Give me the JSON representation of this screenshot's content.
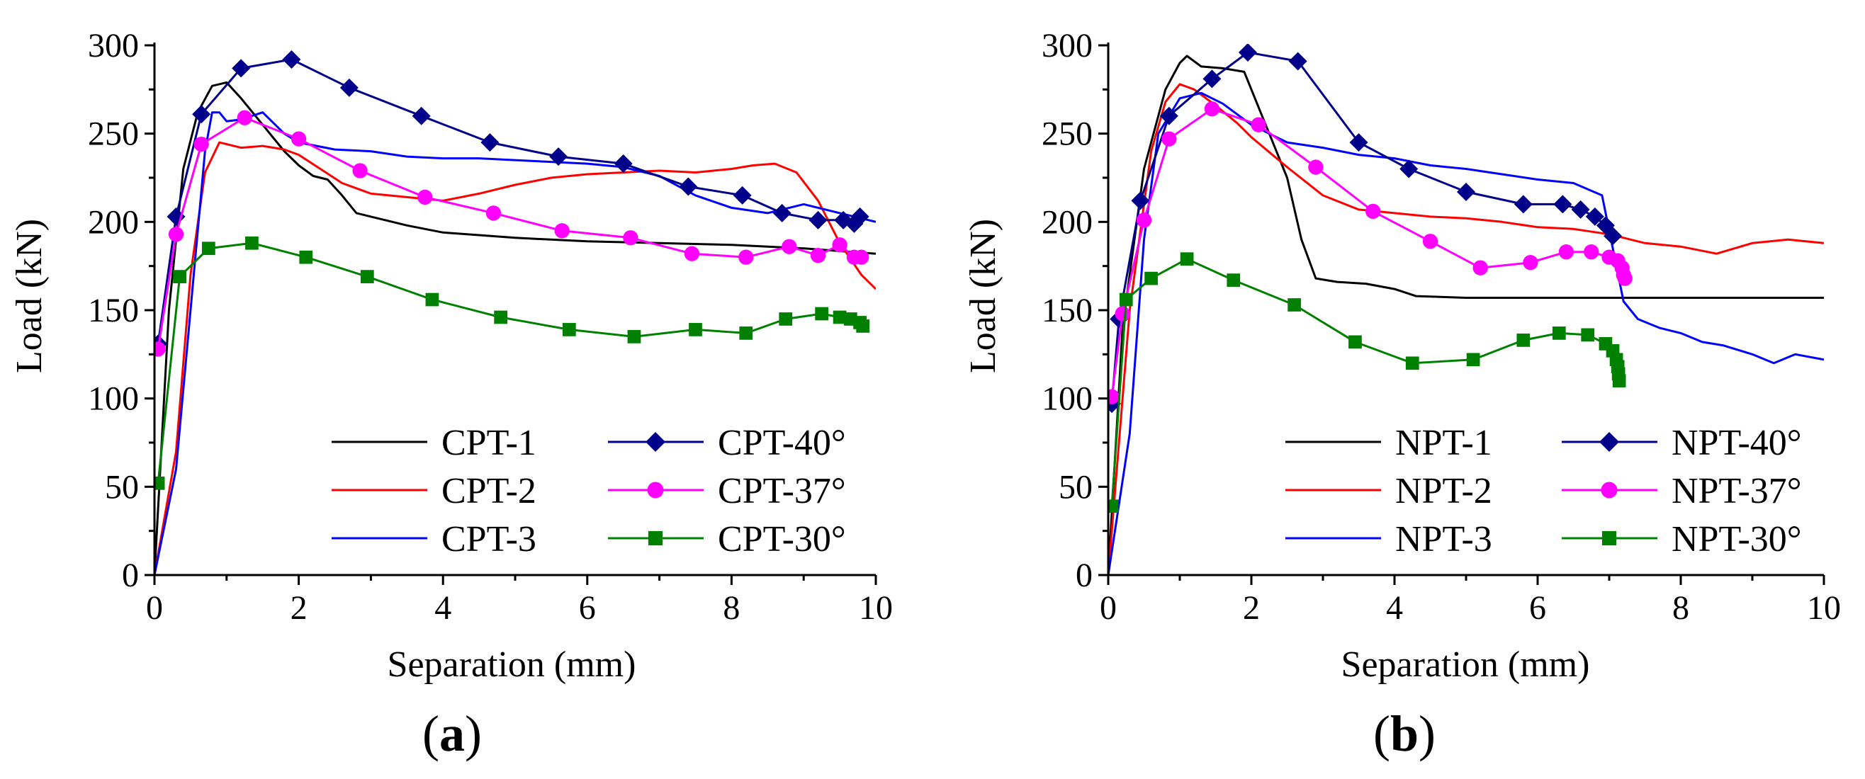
{
  "chart_data": [
    {
      "type": "line",
      "panel_label": {
        "open": "(",
        "letter": "a",
        "close": ")"
      },
      "xlabel": "Separation (mm)",
      "ylabel": "Load (kN)",
      "xlim": [
        0,
        10
      ],
      "ylim": [
        0,
        300
      ],
      "xticks": [
        0,
        2,
        4,
        6,
        8,
        10
      ],
      "yticks": [
        0,
        50,
        100,
        150,
        200,
        250,
        300
      ],
      "legend": "lower-right, 2 columns",
      "series": [
        {
          "name": "CPT-1",
          "color": "#000000",
          "marker": "none",
          "x": [
            0,
            0.2,
            0.4,
            0.6,
            0.8,
            1.0,
            1.2,
            1.5,
            1.8,
            2.0,
            2.2,
            2.4,
            2.6,
            2.8,
            3.0,
            3.5,
            4.0,
            5.0,
            6.0,
            7.0,
            8.0,
            9.0,
            10.0
          ],
          "y": [
            0,
            150,
            230,
            262,
            277,
            279,
            270,
            255,
            240,
            232,
            226,
            224,
            215,
            205,
            203,
            198,
            194,
            191,
            189,
            188,
            187,
            185,
            182
          ]
        },
        {
          "name": "CPT-2",
          "color": "#ff0000",
          "marker": "none",
          "x": [
            0,
            0.3,
            0.5,
            0.7,
            0.9,
            1.0,
            1.2,
            1.5,
            1.8,
            2.0,
            2.3,
            2.6,
            3.0,
            3.5,
            4.0,
            4.5,
            5.0,
            5.5,
            6.0,
            6.5,
            7.0,
            7.5,
            8.0,
            8.3,
            8.6,
            8.9,
            9.2,
            9.5,
            9.8,
            10.0
          ],
          "y": [
            0,
            70,
            170,
            228,
            245,
            244,
            242,
            243,
            241,
            238,
            230,
            222,
            216,
            214,
            212,
            216,
            221,
            225,
            227,
            228,
            229,
            228,
            230,
            232,
            233,
            228,
            212,
            188,
            170,
            162
          ]
        },
        {
          "name": "CPT-3",
          "color": "#0000ff",
          "marker": "none",
          "x": [
            0,
            0.3,
            0.5,
            0.7,
            0.8,
            0.9,
            1.0,
            1.2,
            1.5,
            1.8,
            2.0,
            2.5,
            3.0,
            3.5,
            4.0,
            4.5,
            5.0,
            5.5,
            6.0,
            6.5,
            7.0,
            7.5,
            8.0,
            8.5,
            9.0,
            9.5,
            10.0
          ],
          "y": [
            0,
            60,
            150,
            240,
            262,
            262,
            257,
            258,
            262,
            250,
            245,
            241,
            240,
            237,
            236,
            236,
            235,
            234,
            233,
            231,
            226,
            215,
            208,
            205,
            210,
            205,
            200
          ]
        },
        {
          "name": "CPT-40°",
          "color": "#00008b",
          "marker": "diamond",
          "x": [
            0.05,
            0.3,
            0.65,
            1.2,
            1.9,
            2.7,
            3.7,
            4.65,
            5.6,
            6.5,
            7.4,
            8.15,
            8.7,
            9.2,
            9.55,
            9.7,
            9.78
          ],
          "y": [
            131,
            203,
            261,
            287,
            292,
            276,
            260,
            245,
            237,
            233,
            220,
            215,
            205,
            201,
            201,
            199,
            203
          ]
        },
        {
          "name": "CPT-37°",
          "color": "#ff00ff",
          "marker": "circle",
          "x": [
            0.05,
            0.3,
            0.65,
            1.25,
            2.0,
            2.85,
            3.75,
            4.7,
            5.65,
            6.6,
            7.45,
            8.2,
            8.8,
            9.2,
            9.5,
            9.7,
            9.8
          ],
          "y": [
            128,
            193,
            244,
            259,
            247,
            229,
            214,
            205,
            195,
            191,
            182,
            180,
            186,
            181,
            187,
            180,
            180
          ]
        },
        {
          "name": "CPT-30°",
          "color": "#008000",
          "marker": "square",
          "x": [
            0.05,
            0.35,
            0.75,
            1.35,
            2.1,
            2.95,
            3.85,
            4.8,
            5.75,
            6.65,
            7.5,
            8.2,
            8.75,
            9.25,
            9.5,
            9.65,
            9.78,
            9.82
          ],
          "y": [
            52,
            169,
            185,
            188,
            180,
            169,
            156,
            146,
            139,
            135,
            139,
            137,
            145,
            148,
            146,
            145,
            143,
            141
          ]
        }
      ]
    },
    {
      "type": "line",
      "panel_label": {
        "open": "(",
        "letter": "b",
        "close": ")"
      },
      "xlabel": "Separation (mm)",
      "ylabel": "Load (kN)",
      "xlim": [
        0,
        10
      ],
      "ylim": [
        0,
        300
      ],
      "xticks": [
        0,
        2,
        4,
        6,
        8,
        10
      ],
      "yticks": [
        0,
        50,
        100,
        150,
        200,
        250,
        300
      ],
      "legend": "lower-right, 2 columns",
      "series": [
        {
          "name": "NPT-1",
          "color": "#000000",
          "marker": "none",
          "x": [
            0,
            0.2,
            0.5,
            0.8,
            1.0,
            1.1,
            1.3,
            1.6,
            1.9,
            2.1,
            2.3,
            2.5,
            2.7,
            2.9,
            3.2,
            3.6,
            4.0,
            4.3,
            5.0,
            6.0,
            8.0,
            10.0
          ],
          "y": [
            0,
            140,
            230,
            275,
            290,
            294,
            288,
            287,
            285,
            265,
            245,
            225,
            190,
            168,
            166,
            165,
            162,
            158,
            157,
            157,
            157,
            157
          ]
        },
        {
          "name": "NPT-2",
          "color": "#ff0000",
          "marker": "none",
          "x": [
            0,
            0.3,
            0.6,
            0.8,
            1.0,
            1.2,
            1.5,
            1.8,
            2.0,
            2.5,
            3.0,
            3.5,
            4.0,
            4.5,
            5.0,
            5.5,
            6.0,
            6.5,
            7.0,
            7.5,
            8.0,
            8.5,
            9.0,
            9.5,
            10.0
          ],
          "y": [
            0,
            150,
            240,
            268,
            278,
            275,
            266,
            256,
            248,
            231,
            215,
            207,
            205,
            203,
            202,
            200,
            197,
            196,
            193,
            188,
            186,
            182,
            188,
            190,
            188
          ]
        },
        {
          "name": "NPT-3",
          "color": "#0000ff",
          "marker": "none",
          "x": [
            0,
            0.3,
            0.5,
            0.7,
            1.0,
            1.3,
            1.6,
            2.0,
            2.5,
            3.0,
            3.5,
            4.0,
            4.5,
            5.0,
            5.5,
            6.0,
            6.5,
            6.9,
            7.05,
            7.2,
            7.4,
            7.7,
            8.0,
            8.3,
            8.6,
            9.0,
            9.3,
            9.6,
            10.0
          ],
          "y": [
            0,
            80,
            190,
            250,
            270,
            273,
            267,
            255,
            245,
            242,
            238,
            236,
            232,
            230,
            227,
            224,
            222,
            215,
            185,
            155,
            145,
            140,
            137,
            132,
            130,
            125,
            120,
            125,
            122
          ]
        },
        {
          "name": "NPT-40°",
          "color": "#00008b",
          "marker": "diamond",
          "x": [
            0.05,
            0.15,
            0.45,
            0.85,
            1.45,
            1.95,
            2.65,
            3.5,
            4.2,
            5.0,
            5.8,
            6.35,
            6.6,
            6.8,
            6.95,
            7.05
          ],
          "y": [
            97,
            145,
            212,
            260,
            281,
            296,
            291,
            245,
            230,
            217,
            210,
            210,
            207,
            203,
            198,
            192
          ]
        },
        {
          "name": "NPT-37°",
          "color": "#ff00ff",
          "marker": "circle",
          "x": [
            0.05,
            0.2,
            0.5,
            0.85,
            1.45,
            2.1,
            2.9,
            3.7,
            4.5,
            5.2,
            5.9,
            6.4,
            6.75,
            7.0,
            7.12,
            7.18,
            7.2,
            7.22
          ],
          "y": [
            101,
            148,
            201,
            247,
            264,
            255,
            231,
            206,
            189,
            174,
            177,
            183,
            183,
            180,
            178,
            174,
            170,
            168
          ]
        },
        {
          "name": "NPT-30°",
          "color": "#008000",
          "marker": "square",
          "x": [
            0.05,
            0.25,
            0.6,
            1.1,
            1.75,
            2.6,
            3.45,
            4.25,
            5.1,
            5.8,
            6.3,
            6.7,
            6.95,
            7.05,
            7.1,
            7.12,
            7.13,
            7.14
          ],
          "y": [
            39,
            156,
            168,
            179,
            167,
            153,
            132,
            120,
            122,
            133,
            137,
            136,
            131,
            127,
            122,
            118,
            114,
            110
          ]
        }
      ]
    }
  ]
}
